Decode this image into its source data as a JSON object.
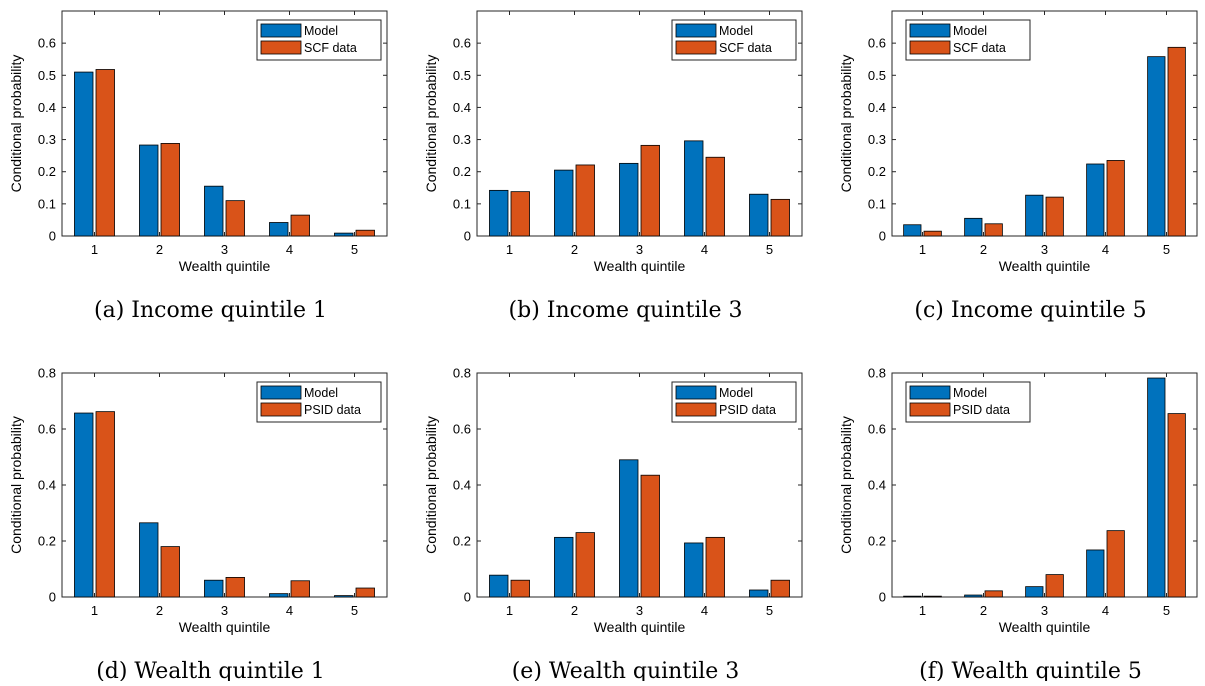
{
  "colors": {
    "model": "#0072BD",
    "data": "#D95319"
  },
  "charts": [
    {
      "id": "a",
      "caption": "(a) Income quintile 1",
      "chart_data": {
        "type": "bar",
        "xlabel": "Wealth quintile",
        "ylabel": "Conditional probability",
        "categories": [
          "1",
          "2",
          "3",
          "4",
          "5"
        ],
        "ylim": [
          0,
          0.7
        ],
        "yticks": [
          "0",
          "0.1",
          "0.2",
          "0.3",
          "0.4",
          "0.5",
          "0.6"
        ],
        "legend_position": "top-right",
        "series": [
          {
            "name": "Model",
            "values": [
              0.51,
              0.283,
              0.155,
              0.042,
              0.009
            ]
          },
          {
            "name": "SCF data",
            "values": [
              0.518,
              0.288,
              0.11,
              0.065,
              0.018
            ]
          }
        ]
      }
    },
    {
      "id": "b",
      "caption": "(b) Income quintile 3",
      "chart_data": {
        "type": "bar",
        "xlabel": "Wealth quintile",
        "ylabel": "Conditional probability",
        "categories": [
          "1",
          "2",
          "3",
          "4",
          "5"
        ],
        "ylim": [
          0,
          0.7
        ],
        "yticks": [
          "0",
          "0.1",
          "0.2",
          "0.3",
          "0.4",
          "0.5",
          "0.6"
        ],
        "legend_position": "top-right",
        "series": [
          {
            "name": "Model",
            "values": [
              0.142,
              0.205,
              0.226,
              0.296,
              0.13
            ]
          },
          {
            "name": "SCF data",
            "values": [
              0.138,
              0.221,
              0.282,
              0.245,
              0.114
            ]
          }
        ]
      }
    },
    {
      "id": "c",
      "caption": "(c) Income quintile 5",
      "chart_data": {
        "type": "bar",
        "xlabel": "Wealth quintile",
        "ylabel": "Conditional probability",
        "categories": [
          "1",
          "2",
          "3",
          "4",
          "5"
        ],
        "ylim": [
          0,
          0.7
        ],
        "yticks": [
          "0",
          "0.1",
          "0.2",
          "0.3",
          "0.4",
          "0.5",
          "0.6"
        ],
        "legend_position": "top-left",
        "series": [
          {
            "name": "Model",
            "values": [
              0.035,
              0.055,
              0.127,
              0.224,
              0.558
            ]
          },
          {
            "name": "SCF data",
            "values": [
              0.015,
              0.038,
              0.121,
              0.235,
              0.587
            ]
          }
        ]
      }
    },
    {
      "id": "d",
      "caption": "(d) Wealth quintile 1",
      "chart_data": {
        "type": "bar",
        "xlabel": "Wealth quintile",
        "ylabel": "Conditional probability",
        "categories": [
          "1",
          "2",
          "3",
          "4",
          "5"
        ],
        "ylim": [
          0,
          0.8
        ],
        "yticks": [
          "0",
          "0.2",
          "0.4",
          "0.6",
          "0.8"
        ],
        "legend_position": "top-right",
        "series": [
          {
            "name": "Model",
            "values": [
              0.657,
              0.265,
              0.06,
              0.012,
              0.005
            ]
          },
          {
            "name": "PSID data",
            "values": [
              0.662,
              0.18,
              0.07,
              0.058,
              0.032
            ]
          }
        ]
      }
    },
    {
      "id": "e",
      "caption": "(e) Wealth quintile 3",
      "chart_data": {
        "type": "bar",
        "xlabel": "Wealth quintile",
        "ylabel": "Conditional probability",
        "categories": [
          "1",
          "2",
          "3",
          "4",
          "5"
        ],
        "ylim": [
          0,
          0.8
        ],
        "yticks": [
          "0",
          "0.2",
          "0.4",
          "0.6",
          "0.8"
        ],
        "legend_position": "top-right",
        "series": [
          {
            "name": "Model",
            "values": [
              0.078,
              0.213,
              0.49,
              0.193,
              0.025
            ]
          },
          {
            "name": "PSID data",
            "values": [
              0.06,
              0.23,
              0.435,
              0.213,
              0.06
            ]
          }
        ]
      }
    },
    {
      "id": "f",
      "caption": "(f) Wealth quintile 5",
      "chart_data": {
        "type": "bar",
        "xlabel": "Wealth quintile",
        "ylabel": "Conditional probability",
        "categories": [
          "1",
          "2",
          "3",
          "4",
          "5"
        ],
        "ylim": [
          0,
          0.8
        ],
        "yticks": [
          "0",
          "0.2",
          "0.4",
          "0.6",
          "0.8"
        ],
        "legend_position": "top-left",
        "series": [
          {
            "name": "Model",
            "values": [
              0.003,
              0.007,
              0.037,
              0.168,
              0.782
            ]
          },
          {
            "name": "PSID data",
            "values": [
              0.003,
              0.022,
              0.08,
              0.237,
              0.655
            ]
          }
        ]
      }
    }
  ]
}
